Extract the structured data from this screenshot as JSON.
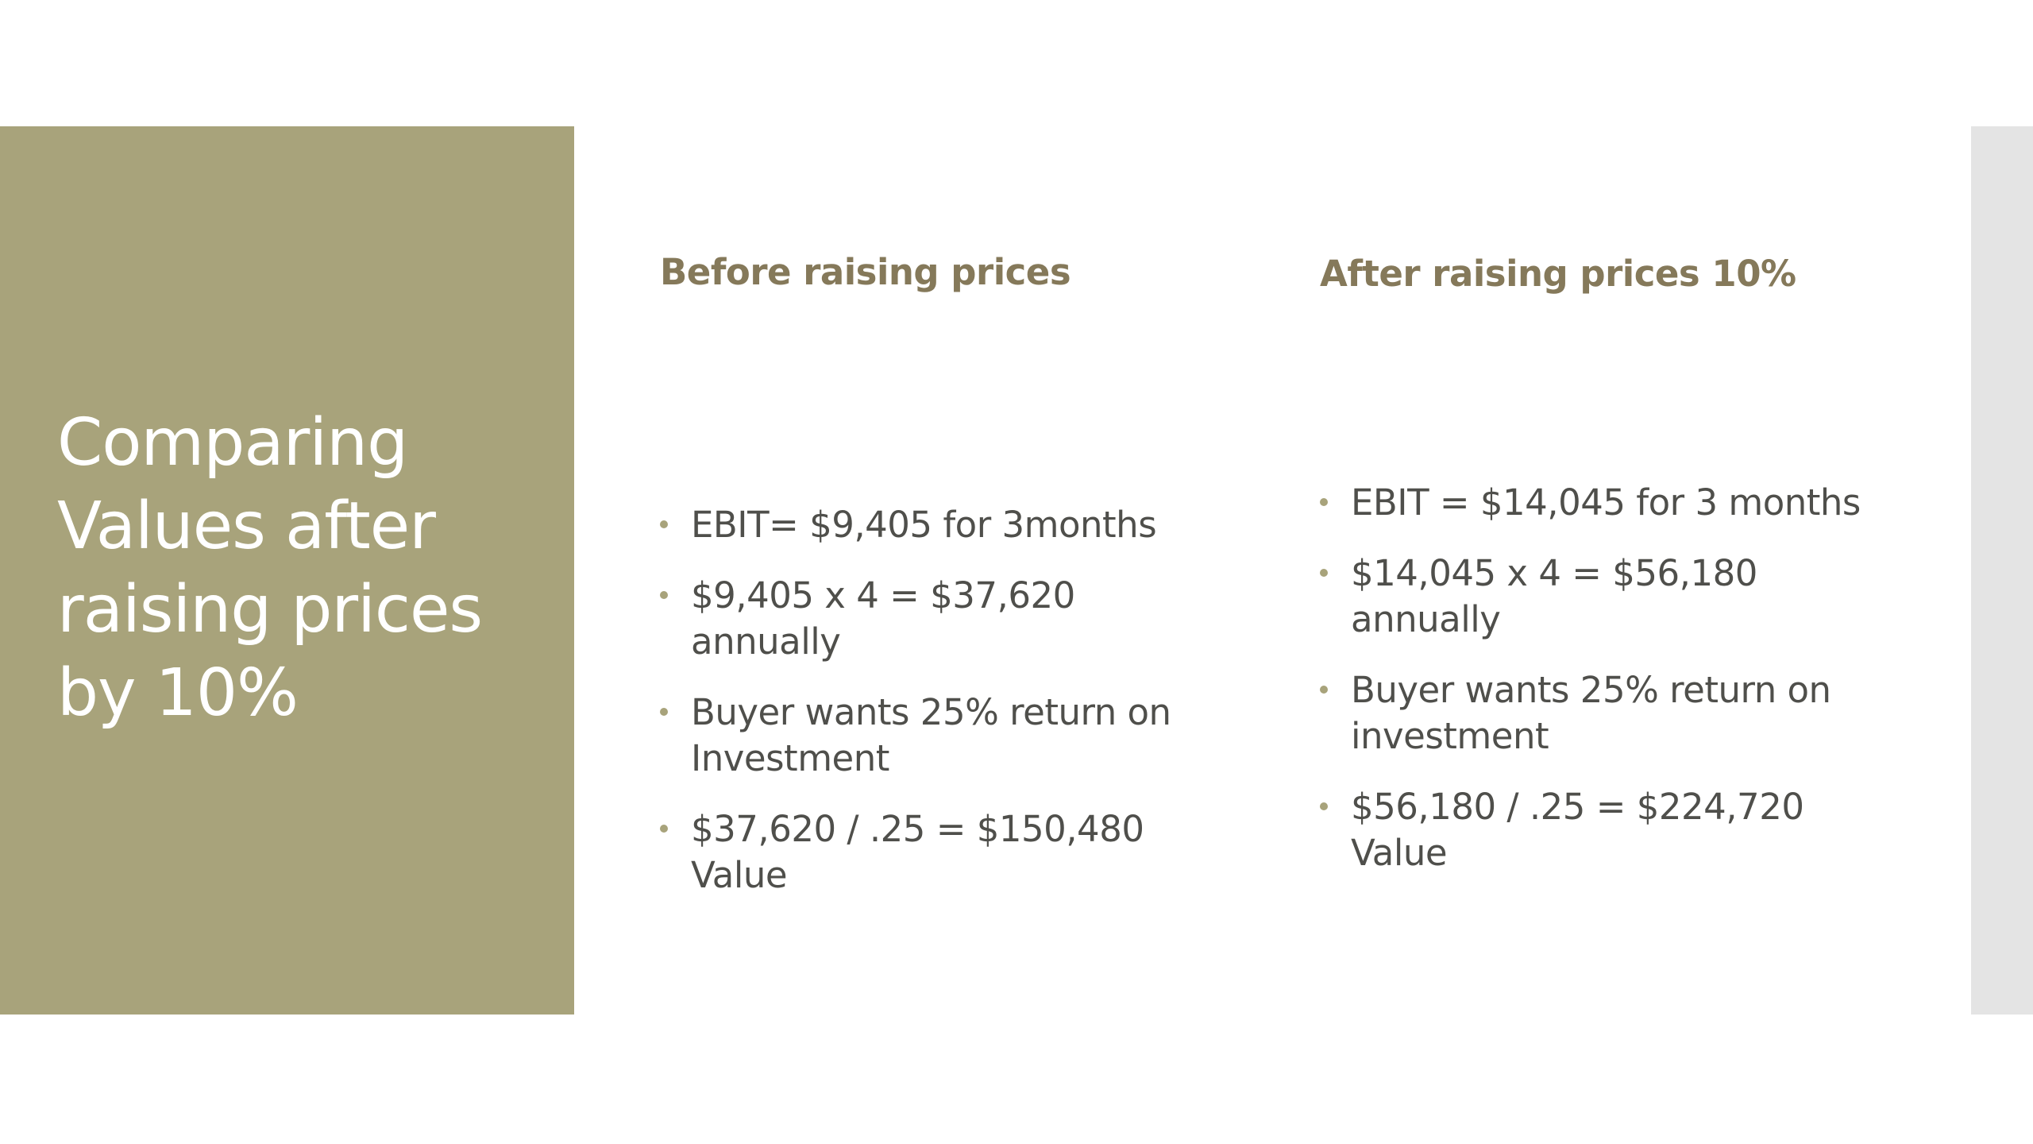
{
  "slide": {
    "title": "Comparing Values after raising prices by 10%",
    "columns": [
      {
        "heading": "Before raising prices",
        "bullets": [
          "EBIT= $9,405 for 3months",
          "$9,405 x 4 = $37,620 annually",
          "Buyer wants 25% return on Investment",
          "$37,620 / .25 = $150,480 Value"
        ]
      },
      {
        "heading": "After raising prices 10%",
        "bullets": [
          "EBIT = $14,045 for 3 months",
          "$14,045 x 4 = $56,180 annually",
          "Buyer wants 25% return on investment",
          "$56,180 / .25 = $224,720 Value"
        ]
      }
    ]
  },
  "colors": {
    "title_panel": "#a8a37b",
    "heading_text": "#85795a",
    "body_text": "#4f4f4b",
    "right_strip": "#e4e4e4"
  },
  "icons": {
    "bullet": "bullet-dot-icon"
  }
}
